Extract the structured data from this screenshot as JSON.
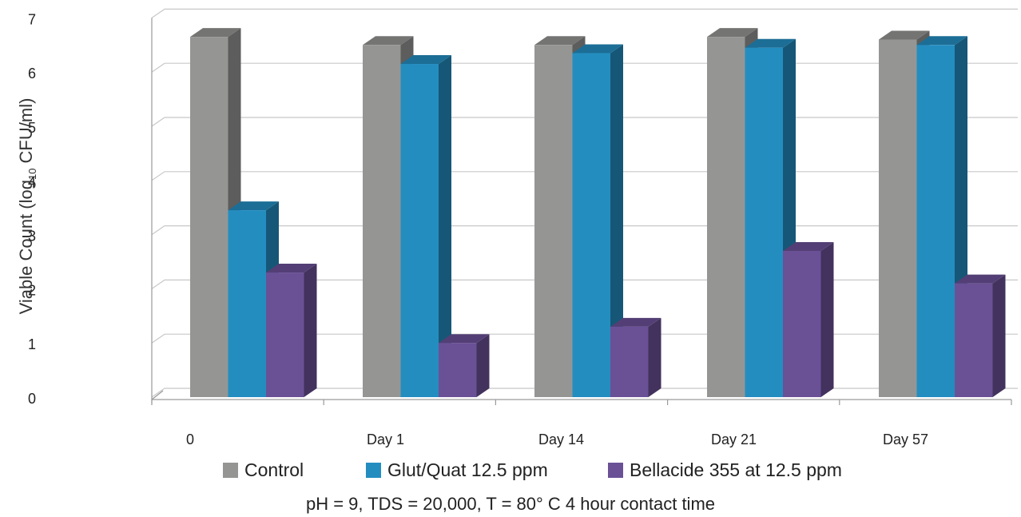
{
  "chart_data": {
    "type": "bar",
    "categories": [
      "0",
      "Day 1",
      "Day 14",
      "Day 21",
      "Day 57"
    ],
    "series": [
      {
        "name": "Control",
        "values": [
          6.65,
          6.5,
          6.5,
          6.65,
          6.6
        ],
        "color": "#959694"
      },
      {
        "name": "Glut/Quat 12.5 ppm",
        "values": [
          3.45,
          6.15,
          6.35,
          6.45,
          6.5
        ],
        "color": "#248dc0"
      },
      {
        "name": "Bellacide 355 at 12.5 ppm",
        "values": [
          2.3,
          1.0,
          1.3,
          2.7,
          2.1
        ],
        "color": "#6a5196"
      }
    ],
    "ylim": [
      0,
      7
    ],
    "yticks": [
      "0",
      "1",
      "2",
      "3",
      "4",
      "5",
      "6",
      "7"
    ],
    "ylabel_prefix": "Viable Count (log",
    "ylabel_sub": "10",
    "ylabel_suffix": " CFU/ml)",
    "grid": true,
    "legend_position": "bottom",
    "caption": "pH = 9, TDS = 20,000, T = 80° C 4 hour contact time"
  }
}
